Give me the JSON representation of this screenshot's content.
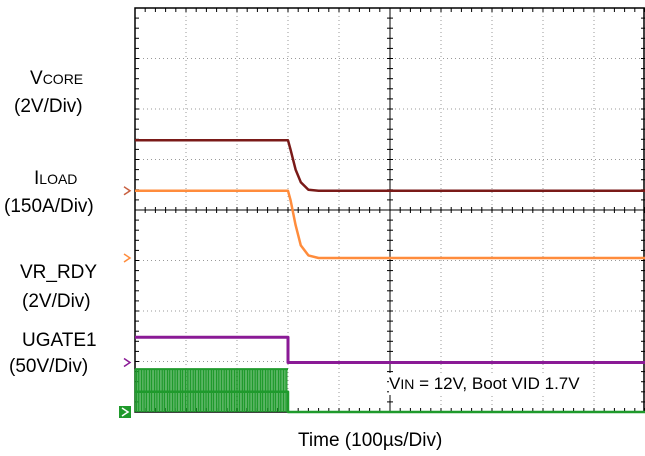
{
  "chart_data": {
    "type": "line",
    "xlabel": "Time  (100µs/Div)",
    "annotation": {
      "prefix": "V",
      "sub": "IN",
      "rest": " = 12V, Boot VID 1.7V"
    },
    "grid": true,
    "divisions": {
      "x": 10,
      "y": 8
    },
    "x_range_us": [
      0,
      1000
    ],
    "series": [
      {
        "name_main": "V",
        "name_sub": "CORE",
        "scale": "(2V/Div)",
        "color": "#7a1a18",
        "marker_color": "#c86040",
        "x_us": [
          0,
          300,
          305,
          315,
          325,
          340,
          360,
          1000
        ],
        "div": [
          5.38,
          5.38,
          5.2,
          4.8,
          4.55,
          4.4,
          4.38,
          4.38
        ]
      },
      {
        "name_main": "I",
        "name_sub": "LOAD",
        "scale": "(150A/Div)",
        "color": "#ff8c3c",
        "marker_color": "#ff8c3c",
        "x_us": [
          0,
          300,
          305,
          315,
          325,
          340,
          360,
          1000
        ],
        "div": [
          4.38,
          4.38,
          4.2,
          3.7,
          3.3,
          3.1,
          3.05,
          3.05
        ]
      },
      {
        "name_main": "VR_RDY",
        "name_sub": "",
        "scale": "(2V/Div)",
        "color": "#8a1a96",
        "marker_color": "#8a1a96",
        "x_us": [
          0,
          300,
          300,
          1000
        ],
        "div": [
          1.48,
          1.48,
          0.98,
          0.98
        ]
      },
      {
        "name_main": "UGATE1",
        "name_sub": "",
        "scale": "(50V/Div)",
        "color": "#1f9a2c",
        "marker_color": "#1f9a2c",
        "x_us": [
          0,
          300,
          300,
          1000
        ],
        "div": [
          0.4,
          0.4,
          0.0,
          0.0
        ]
      }
    ]
  }
}
